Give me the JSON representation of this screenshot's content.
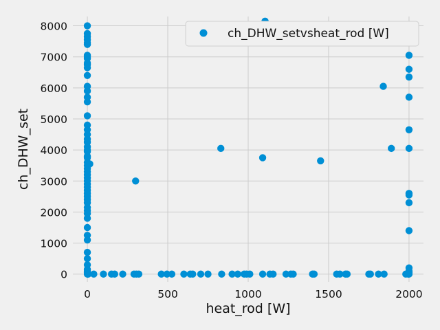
{
  "chart_data": {
    "type": "scatter",
    "title": "",
    "xlabel": "heat_rod [W]",
    "ylabel": "ch_DHW_set",
    "xlim": [
      -90,
      2090
    ],
    "ylim": [
      -250,
      8300
    ],
    "xticks": [
      0,
      500,
      1000,
      1500,
      2000
    ],
    "yticks": [
      0,
      1000,
      2000,
      3000,
      4000,
      5000,
      6000,
      7000,
      8000
    ],
    "grid": true,
    "legend": {
      "position": "top-right",
      "entries": [
        "ch_DHW_setvsheat_rod [W]"
      ]
    },
    "series": [
      {
        "name": "ch_DHW_setvsheat_rod [W]",
        "color": "#008fd5",
        "points": [
          [
            0,
            8000
          ],
          [
            0,
            7750
          ],
          [
            0,
            7650
          ],
          [
            0,
            7550
          ],
          [
            0,
            7450
          ],
          [
            0,
            7400
          ],
          [
            0,
            7050
          ],
          [
            0,
            7000
          ],
          [
            0,
            6950
          ],
          [
            0,
            6800
          ],
          [
            0,
            6750
          ],
          [
            0,
            6650
          ],
          [
            0,
            6400
          ],
          [
            0,
            6050
          ],
          [
            0,
            5900
          ],
          [
            0,
            5700
          ],
          [
            0,
            5550
          ],
          [
            0,
            5100
          ],
          [
            0,
            4800
          ],
          [
            0,
            4650
          ],
          [
            0,
            4500
          ],
          [
            0,
            4350
          ],
          [
            0,
            4250
          ],
          [
            0,
            4100
          ],
          [
            0,
            4000
          ],
          [
            0,
            3950
          ],
          [
            0,
            3800
          ],
          [
            0,
            3750
          ],
          [
            0,
            3600
          ],
          [
            0,
            3500
          ],
          [
            0,
            3400
          ],
          [
            0,
            3300
          ],
          [
            0,
            3200
          ],
          [
            0,
            3100
          ],
          [
            0,
            3000
          ],
          [
            0,
            2900
          ],
          [
            0,
            2800
          ],
          [
            0,
            2700
          ],
          [
            0,
            2600
          ],
          [
            0,
            2500
          ],
          [
            0,
            2400
          ],
          [
            0,
            2300
          ],
          [
            0,
            2150
          ],
          [
            0,
            2050
          ],
          [
            0,
            1950
          ],
          [
            0,
            1800
          ],
          [
            0,
            1500
          ],
          [
            0,
            1250
          ],
          [
            0,
            1100
          ],
          [
            0,
            700
          ],
          [
            0,
            500
          ],
          [
            0,
            300
          ],
          [
            0,
            150
          ],
          [
            0,
            100
          ],
          [
            0,
            50
          ],
          [
            0,
            0
          ],
          [
            15,
            3550
          ],
          [
            5,
            0
          ],
          [
            40,
            0
          ],
          [
            100,
            0
          ],
          [
            150,
            0
          ],
          [
            170,
            0
          ],
          [
            220,
            0
          ],
          [
            290,
            0
          ],
          [
            305,
            0
          ],
          [
            320,
            0
          ],
          [
            460,
            0
          ],
          [
            495,
            0
          ],
          [
            525,
            0
          ],
          [
            600,
            0
          ],
          [
            640,
            0
          ],
          [
            655,
            0
          ],
          [
            705,
            0
          ],
          [
            750,
            0
          ],
          [
            835,
            0
          ],
          [
            900,
            0
          ],
          [
            935,
            0
          ],
          [
            975,
            0
          ],
          [
            990,
            0
          ],
          [
            1010,
            0
          ],
          [
            1090,
            0
          ],
          [
            1135,
            0
          ],
          [
            1155,
            0
          ],
          [
            1235,
            0
          ],
          [
            1265,
            0
          ],
          [
            1280,
            0
          ],
          [
            1400,
            0
          ],
          [
            1410,
            0
          ],
          [
            1550,
            0
          ],
          [
            1570,
            0
          ],
          [
            1605,
            0
          ],
          [
            1615,
            0
          ],
          [
            1750,
            0
          ],
          [
            1760,
            0
          ],
          [
            1810,
            0
          ],
          [
            1845,
            0
          ],
          [
            1980,
            0
          ],
          [
            1995,
            0
          ],
          [
            300,
            3000
          ],
          [
            830,
            4050
          ],
          [
            1090,
            3750
          ],
          [
            1450,
            3650
          ],
          [
            1105,
            8150
          ],
          [
            1840,
            6050
          ],
          [
            1890,
            4050
          ],
          [
            2000,
            7050
          ],
          [
            2000,
            6600
          ],
          [
            2000,
            6350
          ],
          [
            2000,
            5700
          ],
          [
            2000,
            4650
          ],
          [
            2000,
            4050
          ],
          [
            2000,
            2600
          ],
          [
            2000,
            2550
          ],
          [
            2000,
            2300
          ],
          [
            2000,
            1400
          ],
          [
            2000,
            200
          ],
          [
            2000,
            100
          ],
          [
            2000,
            50
          ],
          [
            2000,
            0
          ]
        ]
      }
    ]
  }
}
